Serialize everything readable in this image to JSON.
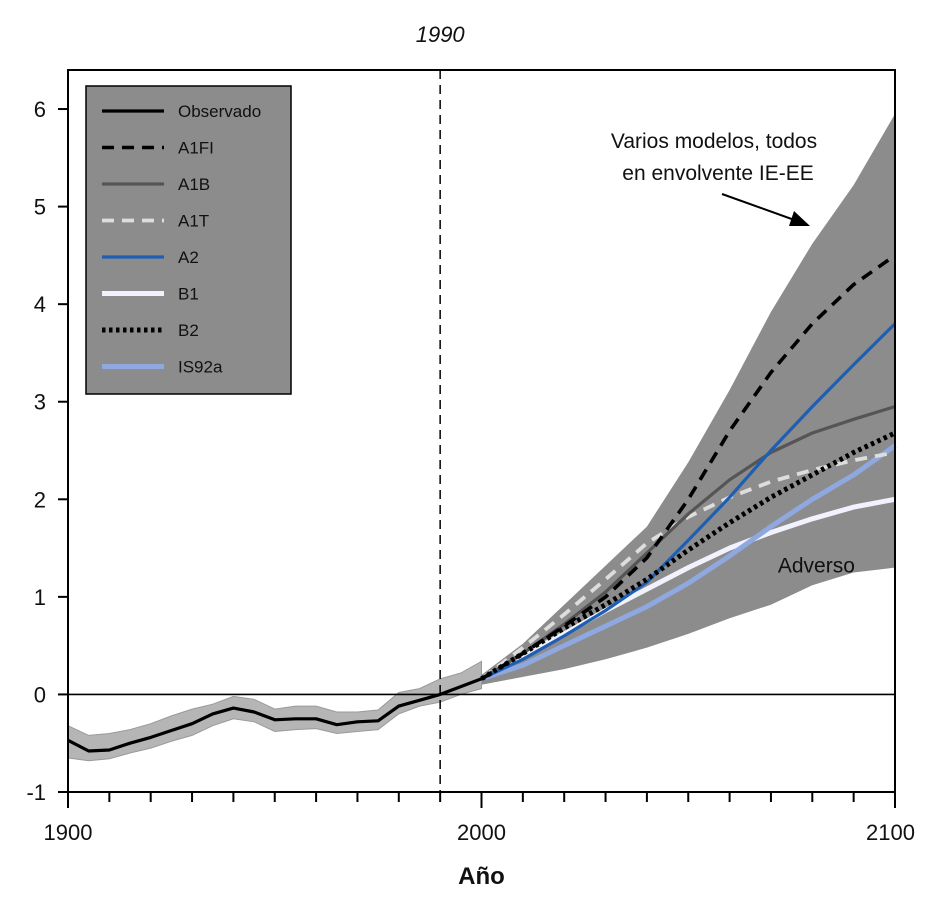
{
  "chart_data": {
    "type": "line",
    "title": "",
    "xlabel": "Año",
    "ylabel": "",
    "xlim": [
      1900,
      2100
    ],
    "ylim": [
      -1,
      6.4
    ],
    "x_ticks_labeled": [
      1900,
      2000,
      2100
    ],
    "y_ticks_labeled": [
      -1,
      0,
      1,
      2,
      3,
      4,
      5,
      6
    ],
    "reference_line": {
      "x": 1990,
      "label": "1990"
    },
    "zero_line": 0,
    "legend_placement": "top-left",
    "legend_bg": "#8c8c8c",
    "envelope_color": "#8c8c8c",
    "observed_band": {
      "x": [
        1900,
        1905,
        1910,
        1915,
        1920,
        1925,
        1930,
        1935,
        1940,
        1945,
        1950,
        1955,
        1960,
        1965,
        1970,
        1975,
        1980,
        1985,
        1990,
        1995,
        2000
      ],
      "low": [
        -0.65,
        -0.68,
        -0.66,
        -0.6,
        -0.55,
        -0.48,
        -0.42,
        -0.32,
        -0.25,
        -0.28,
        -0.38,
        -0.36,
        -0.35,
        -0.4,
        -0.38,
        -0.36,
        -0.2,
        -0.12,
        -0.08,
        0.0,
        0.06
      ],
      "high": [
        -0.32,
        -0.42,
        -0.4,
        -0.36,
        -0.3,
        -0.22,
        -0.15,
        -0.1,
        -0.02,
        -0.05,
        -0.15,
        -0.12,
        -0.12,
        -0.18,
        -0.18,
        -0.16,
        0.02,
        0.06,
        0.16,
        0.22,
        0.34
      ]
    },
    "envelope": {
      "label": "Varios modelos, todos en envolvente IE-EE",
      "x": [
        2000,
        2010,
        2020,
        2030,
        2040,
        2050,
        2060,
        2070,
        2080,
        2090,
        2100
      ],
      "low": [
        0.1,
        0.18,
        0.26,
        0.36,
        0.48,
        0.62,
        0.78,
        0.92,
        1.12,
        1.25,
        1.3
      ],
      "high": [
        0.2,
        0.52,
        0.92,
        1.32,
        1.72,
        2.38,
        3.12,
        3.92,
        4.62,
        5.22,
        5.95
      ]
    },
    "x": [
      1900,
      1905,
      1910,
      1915,
      1920,
      1925,
      1930,
      1935,
      1940,
      1945,
      1950,
      1955,
      1960,
      1965,
      1970,
      1975,
      1980,
      1985,
      1990,
      1995,
      2000,
      2010,
      2020,
      2030,
      2040,
      2050,
      2060,
      2070,
      2080,
      2090,
      2100
    ],
    "series": [
      {
        "name": "Observado",
        "color": "#000000",
        "style": "solid",
        "x": [
          1900,
          1905,
          1910,
          1915,
          1920,
          1925,
          1930,
          1935,
          1940,
          1945,
          1950,
          1955,
          1960,
          1965,
          1970,
          1975,
          1980,
          1985,
          1990,
          1995,
          2000
        ],
        "values": [
          -0.47,
          -0.58,
          -0.57,
          -0.5,
          -0.44,
          -0.37,
          -0.3,
          -0.2,
          -0.14,
          -0.18,
          -0.26,
          -0.25,
          -0.25,
          -0.31,
          -0.28,
          -0.27,
          -0.12,
          -0.06,
          0.0,
          0.08,
          0.16
        ]
      },
      {
        "name": "A1FI",
        "color": "#000000",
        "style": "dashed",
        "x": [
          2000,
          2010,
          2020,
          2030,
          2040,
          2050,
          2060,
          2070,
          2080,
          2090,
          2100
        ],
        "values": [
          0.16,
          0.42,
          0.7,
          1.0,
          1.4,
          2.0,
          2.7,
          3.3,
          3.8,
          4.2,
          4.5
        ]
      },
      {
        "name": "A1B",
        "color": "#555555",
        "style": "solid",
        "x": [
          2000,
          2010,
          2020,
          2030,
          2040,
          2050,
          2060,
          2070,
          2080,
          2090,
          2100
        ],
        "values": [
          0.16,
          0.42,
          0.72,
          1.05,
          1.45,
          1.85,
          2.2,
          2.48,
          2.68,
          2.82,
          2.95
        ]
      },
      {
        "name": "A1T",
        "color": "#dddddd",
        "style": "dashed",
        "x": [
          2000,
          2010,
          2020,
          2030,
          2040,
          2050,
          2060,
          2070,
          2080,
          2090,
          2100
        ],
        "values": [
          0.16,
          0.48,
          0.82,
          1.18,
          1.55,
          1.82,
          2.02,
          2.18,
          2.3,
          2.4,
          2.48
        ]
      },
      {
        "name": "A2",
        "color": "#1f5fb3",
        "style": "solid",
        "x": [
          2000,
          2010,
          2020,
          2030,
          2040,
          2050,
          2060,
          2070,
          2080,
          2090,
          2100
        ],
        "values": [
          0.16,
          0.36,
          0.6,
          0.86,
          1.15,
          1.58,
          2.02,
          2.5,
          2.95,
          3.38,
          3.8
        ]
      },
      {
        "name": "B1",
        "color": "#f2f2ff",
        "style": "solid",
        "x": [
          2000,
          2010,
          2020,
          2030,
          2040,
          2050,
          2060,
          2070,
          2080,
          2090,
          2100
        ],
        "values": [
          0.16,
          0.4,
          0.62,
          0.86,
          1.08,
          1.3,
          1.5,
          1.66,
          1.8,
          1.92,
          2.0
        ]
      },
      {
        "name": "B2",
        "color": "#000000",
        "style": "dotted",
        "x": [
          2000,
          2010,
          2020,
          2030,
          2040,
          2050,
          2060,
          2070,
          2080,
          2090,
          2100
        ],
        "values": [
          0.16,
          0.42,
          0.68,
          0.92,
          1.18,
          1.48,
          1.76,
          2.02,
          2.25,
          2.48,
          2.68
        ]
      },
      {
        "name": "IS92a",
        "color": "#8fa8e0",
        "style": "solid",
        "x": [
          2000,
          2010,
          2020,
          2030,
          2040,
          2050,
          2060,
          2070,
          2080,
          2090,
          2100
        ],
        "values": [
          0.16,
          0.3,
          0.5,
          0.7,
          0.9,
          1.14,
          1.42,
          1.72,
          2.0,
          2.25,
          2.55
        ]
      }
    ],
    "annotations": [
      {
        "text": "Adverso",
        "x": 2081,
        "y": 1.25
      }
    ]
  }
}
